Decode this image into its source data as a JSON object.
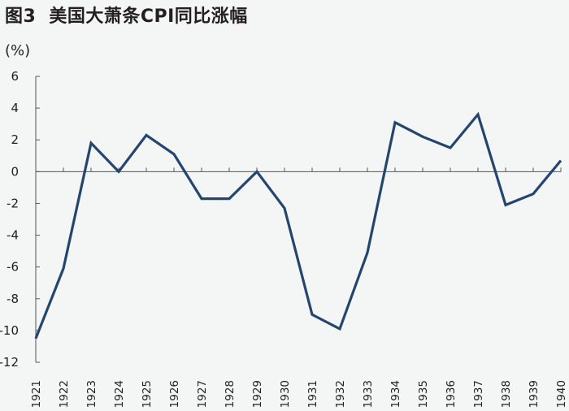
{
  "chart_data": {
    "type": "line",
    "title": "美国大萧条CPI同比涨幅",
    "figure_label": "图3",
    "ylabel": "(%)",
    "xlabel": "",
    "ylim": [
      -12,
      6
    ],
    "yticks": [
      6,
      4,
      2,
      0,
      -2,
      -4,
      -6,
      -8,
      -10,
      -12
    ],
    "ytick_labels": [
      "6",
      "4",
      "2",
      "0",
      "-2",
      "-4",
      "-6",
      "-8",
      "-10",
      "-12"
    ],
    "categories": [
      "1921",
      "1922",
      "1923",
      "1924",
      "1925",
      "1926",
      "1927",
      "1928",
      "1929",
      "1930",
      "1931",
      "1932",
      "1933",
      "1934",
      "1935",
      "1936",
      "1937",
      "1938",
      "1939",
      "1940"
    ],
    "series": [
      {
        "name": "CPI同比涨幅",
        "color": "#24466e",
        "values": [
          -10.5,
          -6.1,
          1.8,
          0.0,
          2.3,
          1.1,
          -1.7,
          -1.7,
          0.0,
          -2.3,
          -9.0,
          -9.9,
          -5.1,
          3.1,
          2.2,
          1.5,
          3.6,
          -2.1,
          -1.4,
          0.7
        ]
      }
    ],
    "grid": false,
    "legend": "none"
  }
}
